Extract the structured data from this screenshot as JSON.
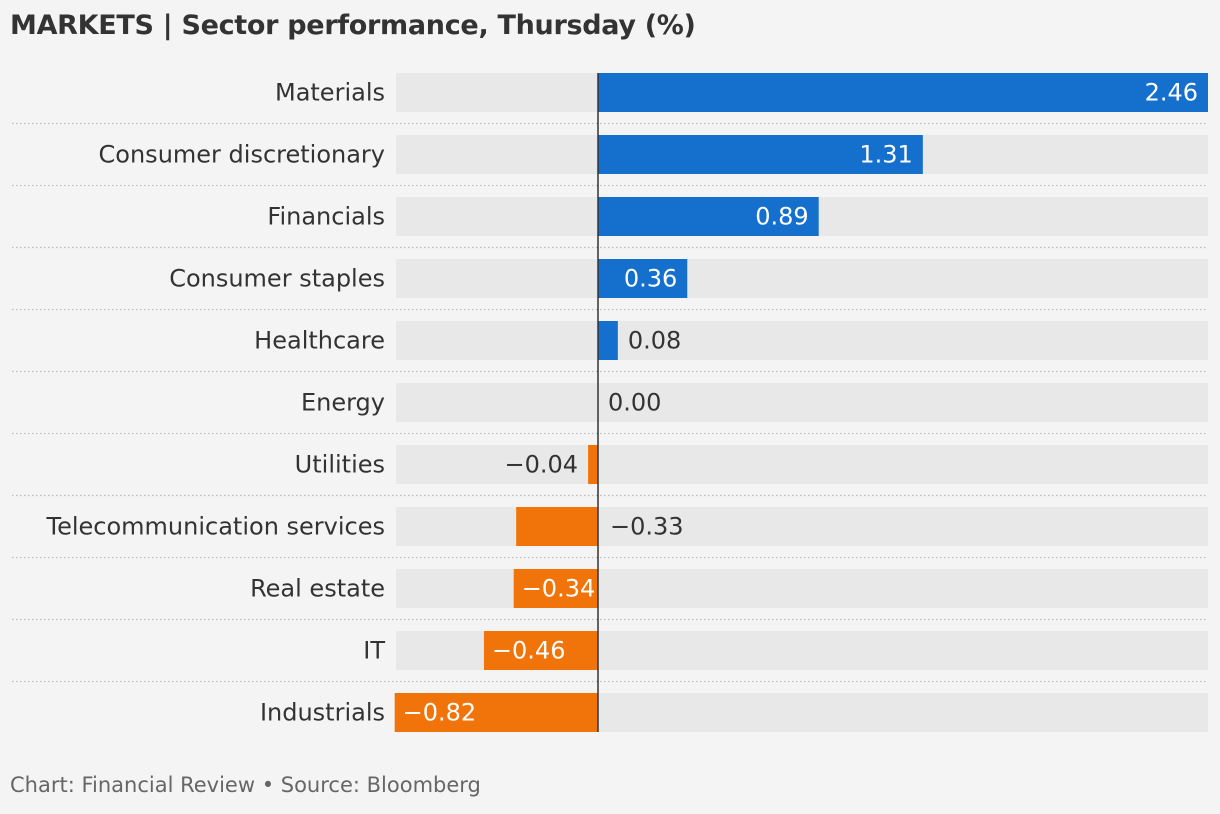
{
  "header": {
    "title": "MARKETS | Sector performance, Thursday (%)"
  },
  "footer": {
    "credit": "Chart: Financial Review • Source: Bloomberg"
  },
  "colors": {
    "positive": "#1470cc",
    "negative": "#f0740a",
    "track": "#e8e8e8",
    "text": "#333333",
    "muted": "#666666"
  },
  "chart_data": {
    "type": "bar",
    "orientation": "horizontal",
    "title": "MARKETS | Sector performance, Thursday (%)",
    "categories": [
      "Materials",
      "Consumer discretionary",
      "Financials",
      "Consumer staples",
      "Healthcare",
      "Energy",
      "Utilities",
      "Telecommunication services",
      "Real estate",
      "IT",
      "Industrials"
    ],
    "values": [
      2.46,
      1.31,
      0.89,
      0.36,
      0.08,
      0.0,
      -0.04,
      -0.33,
      -0.34,
      -0.46,
      -0.82
    ],
    "labels": [
      "2.46",
      "1.31",
      "0.89",
      "0.36",
      "0.08",
      "0.00",
      "−0.04",
      "−0.33",
      "−0.34",
      "−0.46",
      "−0.82"
    ],
    "xlim": [
      -0.82,
      2.46
    ],
    "grid": false,
    "legend": "none"
  }
}
